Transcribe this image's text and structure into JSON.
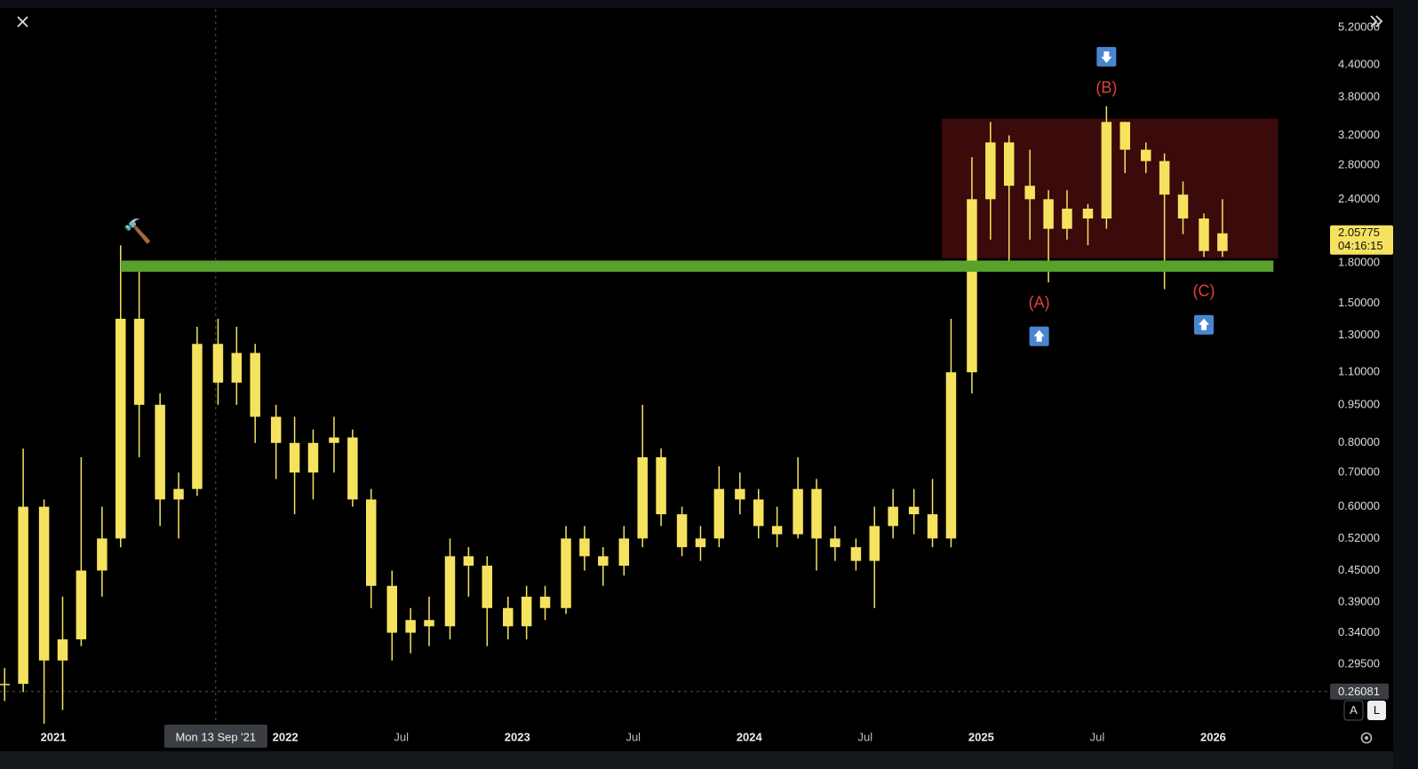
{
  "chart_data": {
    "type": "candlestick",
    "color": "#f5e35f",
    "log_scale": true,
    "xlim": [
      2020.77,
      2026.5
    ],
    "ylim": [
      0.2256,
      5.66
    ],
    "xticks": [
      {
        "value": 2021,
        "label": "2021"
      },
      {
        "value": 2022,
        "label": "2022"
      },
      {
        "value": 2022.5,
        "label": "Jul"
      },
      {
        "value": 2023,
        "label": "2023"
      },
      {
        "value": 2023.5,
        "label": "Jul"
      },
      {
        "value": 2024,
        "label": "2024"
      },
      {
        "value": 2024.5,
        "label": "Jul"
      },
      {
        "value": 2025,
        "label": "2025"
      },
      {
        "value": 2025.5,
        "label": "Jul"
      },
      {
        "value": 2026,
        "label": "2026"
      }
    ],
    "yticks": [
      {
        "value": 5.2,
        "label": "5.20000"
      },
      {
        "value": 4.4,
        "label": "4.40000"
      },
      {
        "value": 3.8,
        "label": "3.80000"
      },
      {
        "value": 3.2,
        "label": "3.20000"
      },
      {
        "value": 2.8,
        "label": "2.80000"
      },
      {
        "value": 2.4,
        "label": "2.40000"
      },
      {
        "value": 1.8,
        "label": "1.80000"
      },
      {
        "value": 1.5,
        "label": "1.50000"
      },
      {
        "value": 1.3,
        "label": "1.30000"
      },
      {
        "value": 1.1,
        "label": "1.10000"
      },
      {
        "value": 0.95,
        "label": "0.95000"
      },
      {
        "value": 0.8,
        "label": "0.80000"
      },
      {
        "value": 0.7,
        "label": "0.70000"
      },
      {
        "value": 0.6,
        "label": "0.60000"
      },
      {
        "value": 0.52,
        "label": "0.52000"
      },
      {
        "value": 0.45,
        "label": "0.45000"
      },
      {
        "value": 0.39,
        "label": "0.39000"
      },
      {
        "value": 0.34,
        "label": "0.34000"
      },
      {
        "value": 0.295,
        "label": "0.29500"
      }
    ],
    "x": [
      2020.79,
      2020.87,
      2020.96,
      2021.04,
      2021.12,
      2021.21,
      2021.29,
      2021.37,
      2021.46,
      2021.54,
      2021.62,
      2021.71,
      2021.79,
      2021.87,
      2021.96,
      2022.04,
      2022.12,
      2022.21,
      2022.29,
      2022.37,
      2022.46,
      2022.54,
      2022.62,
      2022.71,
      2022.79,
      2022.87,
      2022.96,
      2023.04,
      2023.12,
      2023.21,
      2023.29,
      2023.37,
      2023.46,
      2023.54,
      2023.62,
      2023.71,
      2023.79,
      2023.87,
      2023.96,
      2024.04,
      2024.12,
      2024.21,
      2024.29,
      2024.37,
      2024.46,
      2024.54,
      2024.62,
      2024.71,
      2024.79,
      2024.87,
      2024.96,
      2025.04,
      2025.12,
      2025.21,
      2025.29,
      2025.37,
      2025.46,
      2025.54,
      2025.62,
      2025.71,
      2025.79,
      2025.87,
      2025.96,
      2026.04
    ],
    "open": [
      0.27,
      0.27,
      0.6,
      0.3,
      0.33,
      0.45,
      0.52,
      1.4,
      0.95,
      0.62,
      0.65,
      1.25,
      1.05,
      1.2,
      0.9,
      0.8,
      0.7,
      0.8,
      0.82,
      0.62,
      0.42,
      0.34,
      0.36,
      0.35,
      0.48,
      0.46,
      0.38,
      0.35,
      0.4,
      0.38,
      0.52,
      0.48,
      0.46,
      0.52,
      0.75,
      0.58,
      0.5,
      0.52,
      0.65,
      0.62,
      0.55,
      0.53,
      0.65,
      0.52,
      0.5,
      0.47,
      0.55,
      0.6,
      0.58,
      0.52,
      1.1,
      2.4,
      3.1,
      2.55,
      2.4,
      2.1,
      2.3,
      2.2,
      3.4,
      3.0,
      2.85,
      2.45,
      2.2,
      1.9
    ],
    "high": [
      0.29,
      0.78,
      0.62,
      0.4,
      0.75,
      0.6,
      1.95,
      1.75,
      1.0,
      0.7,
      1.35,
      1.4,
      1.35,
      1.25,
      0.95,
      0.9,
      0.85,
      0.9,
      0.85,
      0.65,
      0.45,
      0.38,
      0.4,
      0.52,
      0.5,
      0.48,
      0.4,
      0.42,
      0.42,
      0.55,
      0.55,
      0.5,
      0.55,
      0.95,
      0.78,
      0.6,
      0.55,
      0.72,
      0.7,
      0.65,
      0.6,
      0.75,
      0.68,
      0.55,
      0.52,
      0.6,
      0.65,
      0.65,
      0.68,
      1.4,
      2.9,
      3.4,
      3.2,
      3.0,
      2.5,
      2.5,
      2.35,
      3.65,
      3.4,
      3.1,
      2.95,
      2.6,
      2.25,
      2.4
    ],
    "low": [
      0.25,
      0.26,
      0.22,
      0.24,
      0.32,
      0.4,
      0.5,
      0.75,
      0.55,
      0.52,
      0.63,
      0.95,
      0.95,
      0.8,
      0.68,
      0.58,
      0.62,
      0.7,
      0.6,
      0.38,
      0.3,
      0.31,
      0.32,
      0.33,
      0.4,
      0.32,
      0.33,
      0.33,
      0.36,
      0.37,
      0.45,
      0.42,
      0.44,
      0.5,
      0.55,
      0.48,
      0.47,
      0.5,
      0.58,
      0.52,
      0.5,
      0.52,
      0.45,
      0.47,
      0.45,
      0.38,
      0.52,
      0.53,
      0.5,
      0.5,
      1.0,
      2.0,
      1.8,
      2.0,
      1.65,
      2.0,
      1.95,
      2.1,
      2.7,
      2.7,
      1.6,
      2.05,
      1.85,
      1.85
    ],
    "close": [
      0.27,
      0.6,
      0.3,
      0.33,
      0.45,
      0.52,
      1.4,
      0.95,
      0.62,
      0.65,
      1.25,
      1.05,
      1.2,
      0.9,
      0.8,
      0.7,
      0.8,
      0.82,
      0.62,
      0.42,
      0.34,
      0.36,
      0.35,
      0.48,
      0.46,
      0.38,
      0.35,
      0.4,
      0.38,
      0.52,
      0.48,
      0.46,
      0.52,
      0.75,
      0.58,
      0.5,
      0.52,
      0.65,
      0.62,
      0.55,
      0.53,
      0.65,
      0.52,
      0.5,
      0.47,
      0.55,
      0.6,
      0.58,
      0.52,
      1.1,
      2.4,
      3.1,
      2.55,
      2.4,
      2.1,
      2.3,
      2.2,
      3.4,
      3.0,
      2.85,
      2.45,
      2.2,
      1.9,
      2.05775
    ],
    "range_box": {
      "from": 2024.83,
      "to": 2026.28,
      "low": 1.84,
      "high": 3.45,
      "color": "#3b0a0a"
    },
    "support_zone": {
      "from": 2021.29,
      "to": 2026.26,
      "low": 1.73,
      "high": 1.82,
      "color": "#5aa02c"
    },
    "annotations": [
      {
        "text": "(A)",
        "x": 2025.25,
        "y": 1.5,
        "marker": "up",
        "color": "#e0413c"
      },
      {
        "text": "(B)",
        "x": 2025.54,
        "y": 3.95,
        "marker": "down",
        "color": "#e0413c"
      },
      {
        "text": "(C)",
        "x": 2025.96,
        "y": 1.58,
        "marker": "up",
        "color": "#e0413c"
      }
    ],
    "last_price": 2.05775,
    "countdown": "04:16:15",
    "crosshair": {
      "x": 2021.7,
      "x_label": "Mon 13 Sep '21",
      "y": 0.26081
    },
    "controls": {
      "auto": "A",
      "log": "L"
    }
  }
}
